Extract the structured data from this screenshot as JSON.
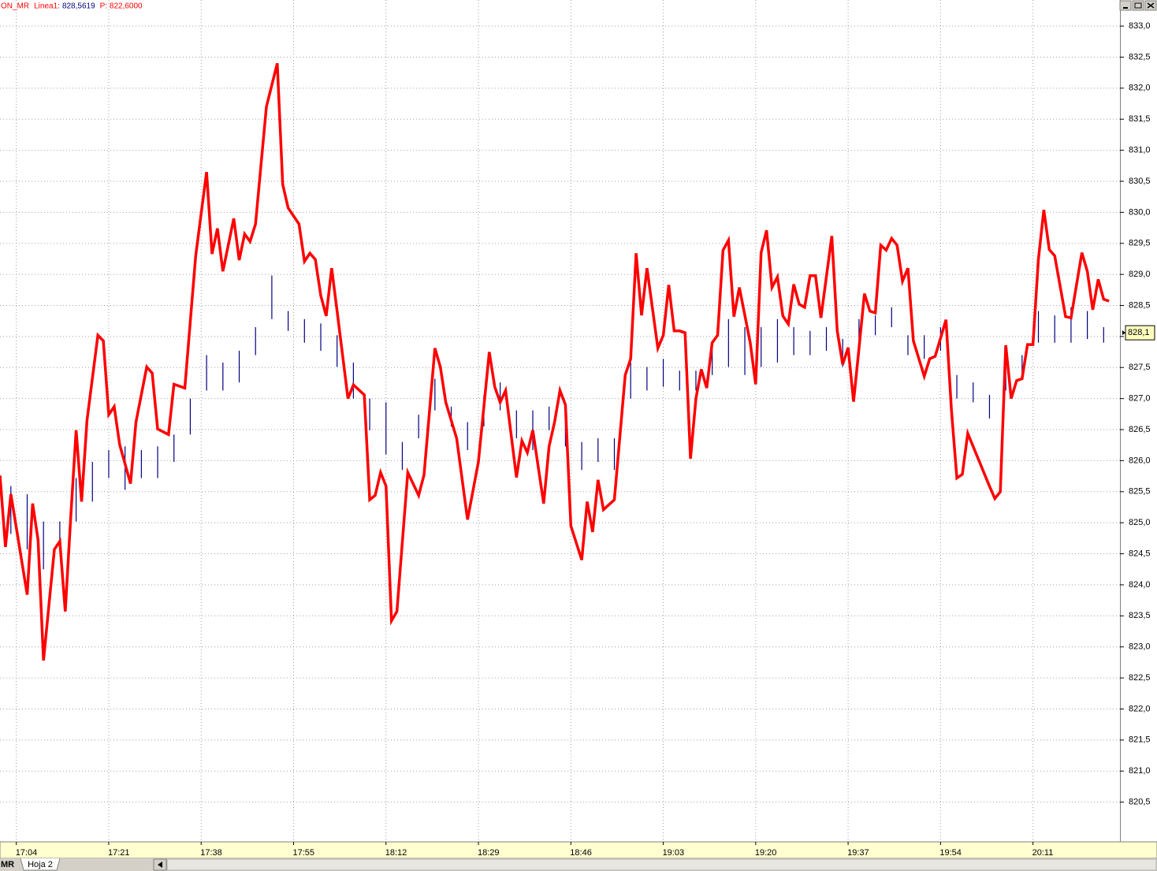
{
  "chart_data": {
    "type": "line",
    "header": {
      "symbol": "ON_MR",
      "line_label": "Linea1:",
      "line_value": "828,5619",
      "price": "P: 822,6000"
    },
    "footer": {
      "symbol": "MR",
      "tab": "Hoja 2"
    },
    "grid": true,
    "xlim": [
      "17:01",
      "20:27"
    ],
    "xticks": [
      "17:04",
      "17:21",
      "17:38",
      "17:55",
      "18:12",
      "18:29",
      "18:46",
      "19:03",
      "19:20",
      "19:37",
      "19:54",
      "20:11"
    ],
    "ylim": [
      819.86,
      833.42
    ],
    "yticks": [
      {
        "value": 820.5,
        "label": "820,5"
      },
      {
        "value": 821,
        "label": "821,0"
      },
      {
        "value": 821.5,
        "label": "821,5"
      },
      {
        "value": 822,
        "label": "822,0"
      },
      {
        "value": 822.5,
        "label": "822,5"
      },
      {
        "value": 823,
        "label": "823,0"
      },
      {
        "value": 823.5,
        "label": "823,5"
      },
      {
        "value": 824,
        "label": "824,0"
      },
      {
        "value": 824.5,
        "label": "824,5"
      },
      {
        "value": 825,
        "label": "825,0"
      },
      {
        "value": 825.5,
        "label": "825,5"
      },
      {
        "value": 826,
        "label": "826,0"
      },
      {
        "value": 826.5,
        "label": "826,5"
      },
      {
        "value": 827,
        "label": "827,0"
      },
      {
        "value": 827.5,
        "label": "827,5"
      },
      {
        "value": 828,
        "label": "828,0"
      },
      {
        "value": 828.5,
        "label": "828,5"
      },
      {
        "value": 829,
        "label": "829,0"
      },
      {
        "value": 829.5,
        "label": "829,5"
      },
      {
        "value": 830,
        "label": "830,0"
      },
      {
        "value": 830.5,
        "label": "830,5"
      },
      {
        "value": 831,
        "label": "831,0"
      },
      {
        "value": 831.5,
        "label": "831,5"
      },
      {
        "value": 832,
        "label": "832,0"
      },
      {
        "value": 832.5,
        "label": "832,5"
      },
      {
        "value": 833,
        "label": "833,0"
      }
    ],
    "last_value": {
      "value": 828.06,
      "label": "828,1"
    },
    "line": {
      "color": "#ff0000",
      "x": [
        "17:01",
        "17:02",
        "17:03",
        "17:06",
        "17:07",
        "17:08",
        "17:09",
        "17:11",
        "17:12",
        "17:13",
        "17:14",
        "17:15",
        "17:16",
        "17:17",
        "17:19",
        "17:20",
        "17:21",
        "17:22",
        "17:23",
        "17:25",
        "17:26",
        "17:28",
        "17:29",
        "17:30",
        "17:32",
        "17:33",
        "17:35",
        "17:37",
        "17:39",
        "17:40",
        "17:41",
        "17:42",
        "17:44",
        "17:45",
        "17:46",
        "17:47",
        "17:48",
        "17:50",
        "17:52",
        "17:53",
        "17:54",
        "17:56",
        "17:57",
        "17:58",
        "17:59",
        "18:00",
        "18:01",
        "18:02",
        "18:03",
        "18:05",
        "18:06",
        "18:08",
        "18:09",
        "18:10",
        "18:11",
        "18:12",
        "18:13",
        "18:14",
        "18:16",
        "18:18",
        "18:19",
        "18:21",
        "18:22",
        "18:23",
        "18:25",
        "18:27",
        "18:29",
        "18:31",
        "18:32",
        "18:33",
        "18:34",
        "18:36",
        "18:37",
        "18:38",
        "18:39",
        "18:41",
        "18:42",
        "18:43",
        "18:44",
        "18:45",
        "18:46",
        "18:48",
        "18:49",
        "18:50",
        "18:51",
        "18:52",
        "18:54",
        "18:56",
        "18:57",
        "18:58",
        "18:59",
        "19:00",
        "19:02",
        "19:03",
        "19:04",
        "19:05",
        "19:06",
        "19:07",
        "19:08",
        "19:09",
        "19:10",
        "19:11",
        "19:12",
        "19:13",
        "19:14",
        "19:15",
        "19:16",
        "19:17",
        "19:19",
        "19:20",
        "19:21",
        "19:22",
        "19:23",
        "19:24",
        "19:25",
        "19:26",
        "19:27",
        "19:28",
        "19:29",
        "19:30",
        "19:31",
        "19:32",
        "19:34",
        "19:35",
        "19:36",
        "19:37",
        "19:38",
        "19:39",
        "19:40",
        "19:41",
        "19:42",
        "19:43",
        "19:44",
        "19:45",
        "19:46",
        "19:47",
        "19:48",
        "19:49",
        "19:51",
        "19:52",
        "19:53",
        "19:55",
        "19:56",
        "19:57",
        "19:58",
        "19:59",
        "20:03",
        "20:04",
        "20:05",
        "20:06",
        "20:07",
        "20:08",
        "20:09",
        "20:10",
        "20:11",
        "20:12",
        "20:13",
        "20:14",
        "20:15",
        "20:17",
        "20:18",
        "20:20",
        "20:21",
        "20:22",
        "20:23",
        "20:24",
        "20:25"
      ],
      "values": [
        825.76,
        824.61,
        825.46,
        823.84,
        825.31,
        824.72,
        822.78,
        824.57,
        824.7,
        823.57,
        825.08,
        826.49,
        825.34,
        826.65,
        828.02,
        827.93,
        826.74,
        826.87,
        826.26,
        825.63,
        826.62,
        827.51,
        827.41,
        826.51,
        826.42,
        827.23,
        827.17,
        829.3,
        830.65,
        829.33,
        829.74,
        829.05,
        829.9,
        829.23,
        829.65,
        829.53,
        829.81,
        831.7,
        832.4,
        830.45,
        830.07,
        829.81,
        829.21,
        829.34,
        829.24,
        828.66,
        828.33,
        829.1,
        828.41,
        827.0,
        827.22,
        827.06,
        825.37,
        825.44,
        825.81,
        825.59,
        823.42,
        823.57,
        825.81,
        825.44,
        825.77,
        827.81,
        827.51,
        826.94,
        826.36,
        825.05,
        825.98,
        827.75,
        827.19,
        826.94,
        827.13,
        825.73,
        826.32,
        826.13,
        826.49,
        825.31,
        826.23,
        826.62,
        827.13,
        826.9,
        824.95,
        824.4,
        825.34,
        824.85,
        825.69,
        825.21,
        825.37,
        827.38,
        827.64,
        829.34,
        828.34,
        829.1,
        827.81,
        828.02,
        828.83,
        828.09,
        828.09,
        828.06,
        826.03,
        827.0,
        827.47,
        827.17,
        827.9,
        828.02,
        829.39,
        829.55,
        828.32,
        828.79,
        827.9,
        827.23,
        829.35,
        829.71,
        828.79,
        828.96,
        828.33,
        828.2,
        828.84,
        828.52,
        828.47,
        828.98,
        828.98,
        828.3,
        829.62,
        828.09,
        827.55,
        827.82,
        826.95,
        827.81,
        828.69,
        828.41,
        828.38,
        829.47,
        829.39,
        829.58,
        829.47,
        828.89,
        829.1,
        827.93,
        827.36,
        827.64,
        827.68,
        828.27,
        826.81,
        825.72,
        825.78,
        826.44,
        825.59,
        825.39,
        825.5,
        827.86,
        827.0,
        827.29,
        827.32,
        827.87,
        827.87,
        829.24,
        830.04,
        829.4,
        829.3,
        828.32,
        828.3,
        829.35,
        829.05,
        828.43,
        828.92,
        828.6,
        828.57
      ]
    },
    "bars": {
      "color": "#000080",
      "x": [
        "17:03",
        "17:06",
        "17:09",
        "17:12",
        "17:15",
        "17:18",
        "17:21",
        "17:24",
        "17:27",
        "17:30",
        "17:33",
        "17:36",
        "17:39",
        "17:42",
        "17:45",
        "17:48",
        "17:51",
        "17:54",
        "17:57",
        "18:00",
        "18:03",
        "18:06",
        "18:09",
        "18:12",
        "18:15",
        "18:18",
        "18:21",
        "18:24",
        "18:27",
        "18:30",
        "18:33",
        "18:36",
        "18:39",
        "18:42",
        "18:45",
        "18:48",
        "18:51",
        "18:54",
        "18:57",
        "19:00",
        "19:03",
        "19:06",
        "19:09",
        "19:12",
        "19:15",
        "19:18",
        "19:21",
        "19:24",
        "19:27",
        "19:30",
        "19:33",
        "19:36",
        "19:39",
        "19:42",
        "19:45",
        "19:48",
        "19:51",
        "19:54",
        "19:57",
        "20:00",
        "20:03",
        "20:06",
        "20:09",
        "20:12",
        "20:15",
        "20:18",
        "20:21",
        "20:24"
      ],
      "high": [
        825.59,
        825.46,
        825.02,
        825.02,
        825.72,
        825.98,
        826.17,
        826.23,
        826.17,
        826.23,
        826.42,
        827.0,
        827.7,
        827.58,
        827.77,
        828.15,
        828.98,
        828.41,
        828.28,
        828.21,
        828.02,
        827.58,
        827.0,
        826.94,
        826.3,
        826.74,
        827.32,
        826.87,
        826.62,
        827.06,
        827.26,
        826.81,
        826.81,
        826.87,
        826.74,
        826.3,
        826.36,
        826.36,
        827.58,
        827.51,
        827.64,
        827.45,
        827.45,
        827.9,
        828.28,
        828.15,
        828.15,
        828.28,
        828.15,
        828.09,
        828.15,
        827.96,
        828.28,
        828.34,
        828.47,
        828.02,
        828.02,
        828.15,
        827.38,
        827.26,
        827.06,
        827.51,
        827.7,
        828.41,
        828.34,
        828.47,
        828.41,
        828.15
      ],
      "low": [
        824.82,
        824.57,
        824.25,
        824.57,
        825.02,
        825.34,
        825.72,
        825.53,
        825.72,
        825.72,
        825.98,
        826.42,
        827.13,
        827.13,
        827.26,
        827.7,
        828.28,
        828.09,
        827.9,
        827.77,
        827.51,
        827.0,
        826.49,
        826.1,
        825.85,
        826.36,
        826.81,
        826.55,
        826.17,
        826.55,
        826.81,
        826.36,
        826.17,
        826.49,
        826.23,
        825.85,
        825.98,
        825.85,
        827.0,
        827.13,
        827.19,
        827.13,
        827.13,
        827.38,
        827.51,
        827.38,
        827.51,
        827.58,
        827.7,
        827.7,
        827.77,
        827.51,
        827.9,
        828.02,
        828.15,
        827.7,
        827.64,
        827.77,
        827.0,
        826.94,
        826.68,
        827.13,
        827.32,
        827.9,
        827.9,
        827.9,
        827.96,
        827.9
      ]
    }
  }
}
